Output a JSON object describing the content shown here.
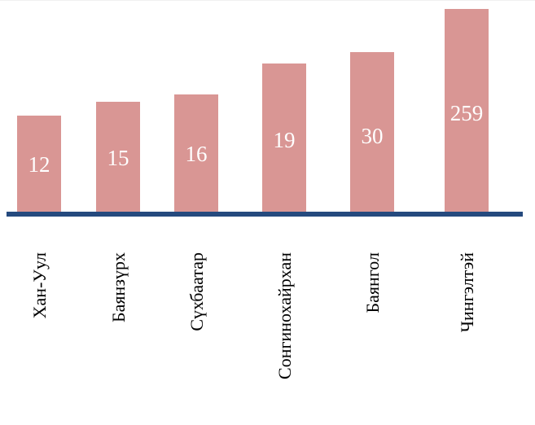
{
  "colors": {
    "bar": "#d99694",
    "axis": "#254a7e",
    "value_label": "#ffffff",
    "category_label": "#000000"
  },
  "chart_data": {
    "type": "bar",
    "categories": [
      "Хан-Уул",
      "Баянзүрх",
      "Сүхбаатар",
      "Сонгинохайрхан",
      "Баянгол",
      "Чингэлтэй"
    ],
    "values": [
      12,
      15,
      16,
      19,
      30,
      259
    ],
    "value_labels": [
      "12",
      "15",
      "16",
      "19",
      "30",
      "259"
    ],
    "category_label_orientation": "vertical",
    "value_label_position": "inside",
    "title": "",
    "xlabel": "",
    "ylabel": "",
    "grid": false,
    "legend": "none"
  }
}
